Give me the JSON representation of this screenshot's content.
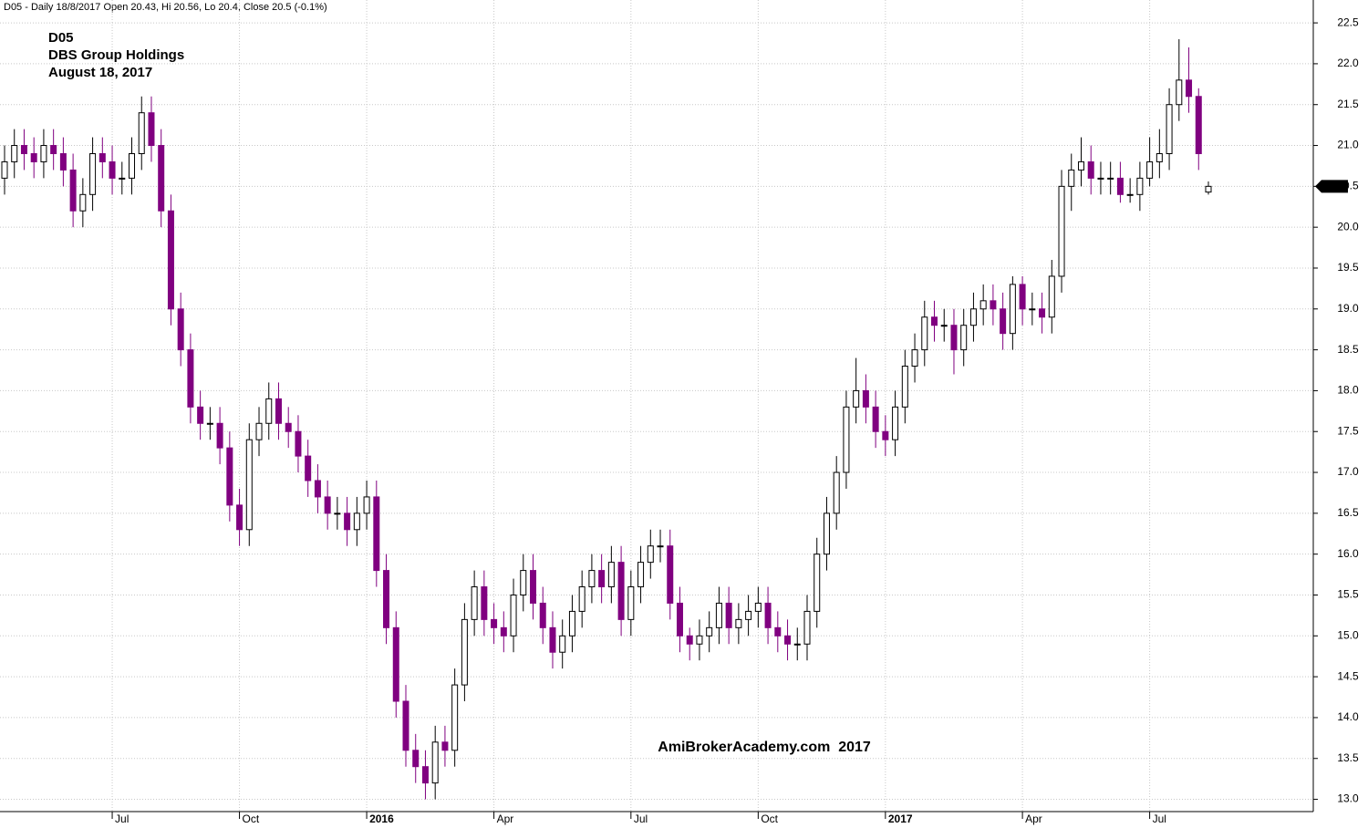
{
  "chart_data": {
    "type": "candlestick",
    "title": "D05 - Daily 18/8/2017 Open 20.43, Hi 20.56, Lo 20.4, Close 20.5 (-0.1%)",
    "annotations": [
      "D05",
      "DBS Group Holdings",
      "August 18, 2017"
    ],
    "watermark": "AmiBrokerAcademy.com  2017",
    "up_color": "#ffffff",
    "down_color": "#800080",
    "outline_color": "#000000",
    "annotation_color": "#e8403a",
    "grid": true,
    "categories": [
      null,
      null,
      null,
      null,
      null,
      null,
      null,
      null,
      null,
      null,
      null,
      "Jul",
      null,
      null,
      null,
      null,
      null,
      null,
      null,
      null,
      null,
      null,
      null,
      null,
      "Oct",
      null,
      null,
      null,
      null,
      null,
      null,
      null,
      null,
      null,
      null,
      null,
      null,
      "2016",
      null,
      null,
      null,
      null,
      null,
      null,
      null,
      null,
      null,
      null,
      null,
      null,
      "Apr",
      null,
      null,
      null,
      null,
      null,
      null,
      null,
      null,
      null,
      null,
      null,
      null,
      null,
      "Jul",
      null,
      null,
      null,
      null,
      null,
      null,
      null,
      null,
      null,
      null,
      null,
      null,
      "Oct",
      null,
      null,
      null,
      null,
      null,
      null,
      null,
      null,
      null,
      null,
      null,
      null,
      "2017",
      null,
      null,
      null,
      null,
      null,
      null,
      null,
      null,
      null,
      null,
      null,
      null,
      null,
      "Apr",
      null,
      null,
      null,
      null,
      null,
      null,
      null,
      null,
      null,
      null,
      null,
      null,
      "Jul",
      null,
      null,
      null,
      null,
      null,
      null
    ],
    "open": [
      20.6,
      20.8,
      21.0,
      20.9,
      20.8,
      21.0,
      20.9,
      20.7,
      20.2,
      20.4,
      20.9,
      20.8,
      20.6,
      20.6,
      20.9,
      21.4,
      21.0,
      20.2,
      19.0,
      18.5,
      17.8,
      17.6,
      17.6,
      17.3,
      16.6,
      16.3,
      17.4,
      17.6,
      17.9,
      17.6,
      17.5,
      17.2,
      16.9,
      16.7,
      16.5,
      16.5,
      16.3,
      16.5,
      16.7,
      15.8,
      15.1,
      14.2,
      13.6,
      13.4,
      13.2,
      13.7,
      13.6,
      14.4,
      15.2,
      15.6,
      15.2,
      15.1,
      15.0,
      15.5,
      15.8,
      15.4,
      15.1,
      14.8,
      15.0,
      15.3,
      15.6,
      15.8,
      15.6,
      15.9,
      15.2,
      15.6,
      15.9,
      16.1,
      16.1,
      15.4,
      15.0,
      14.9,
      15.0,
      15.1,
      15.4,
      15.1,
      15.2,
      15.3,
      15.4,
      15.1,
      15.0,
      14.9,
      14.9,
      15.3,
      16.0,
      16.5,
      17.0,
      17.8,
      18.0,
      17.8,
      17.5,
      17.4,
      17.8,
      18.3,
      18.5,
      18.9,
      18.8,
      18.8,
      18.5,
      18.8,
      19.0,
      19.1,
      19.0,
      18.7,
      19.3,
      19.0,
      19.0,
      18.9,
      19.4,
      20.5,
      20.7,
      20.8,
      20.6,
      20.6,
      20.6,
      20.4,
      20.4,
      20.6,
      20.8,
      20.9,
      21.5,
      21.8,
      21.6,
      20.43
    ],
    "high": [
      21.0,
      21.2,
      21.2,
      21.1,
      21.2,
      21.2,
      21.1,
      20.9,
      20.6,
      21.1,
      21.1,
      21.0,
      20.8,
      21.1,
      21.6,
      21.6,
      21.2,
      20.4,
      19.2,
      18.7,
      18.0,
      17.8,
      17.8,
      17.5,
      16.8,
      17.6,
      17.8,
      18.1,
      18.1,
      17.8,
      17.7,
      17.4,
      17.1,
      16.9,
      16.7,
      16.7,
      16.7,
      16.9,
      16.9,
      16.0,
      15.3,
      14.4,
      13.8,
      13.6,
      13.9,
      13.9,
      14.6,
      15.4,
      15.8,
      15.8,
      15.4,
      15.3,
      15.7,
      16.0,
      16.0,
      15.6,
      15.3,
      15.2,
      15.5,
      15.8,
      16.0,
      16.0,
      16.1,
      16.1,
      15.8,
      16.1,
      16.3,
      16.3,
      16.3,
      15.6,
      15.1,
      15.2,
      15.3,
      15.6,
      15.6,
      15.4,
      15.5,
      15.6,
      15.6,
      15.3,
      15.2,
      15.1,
      15.5,
      16.2,
      16.7,
      17.2,
      18.0,
      18.4,
      18.2,
      18.0,
      17.7,
      18.0,
      18.5,
      18.7,
      19.1,
      19.1,
      19.0,
      19.0,
      19.0,
      19.2,
      19.3,
      19.3,
      19.2,
      19.4,
      19.4,
      19.2,
      19.2,
      19.6,
      20.7,
      20.9,
      21.1,
      21.0,
      20.8,
      20.8,
      20.8,
      20.6,
      20.8,
      21.1,
      21.2,
      21.7,
      22.3,
      22.2,
      21.7,
      20.56
    ],
    "low": [
      20.4,
      20.6,
      20.7,
      20.6,
      20.6,
      20.7,
      20.5,
      20.0,
      20.0,
      20.2,
      20.6,
      20.4,
      20.4,
      20.4,
      20.7,
      20.8,
      20.0,
      18.8,
      18.3,
      17.6,
      17.4,
      17.4,
      17.1,
      16.4,
      16.1,
      16.1,
      17.2,
      17.4,
      17.4,
      17.3,
      17.0,
      16.7,
      16.5,
      16.3,
      16.3,
      16.1,
      16.1,
      16.3,
      15.6,
      14.9,
      14.0,
      13.4,
      13.2,
      13.0,
      13.0,
      13.4,
      13.4,
      14.2,
      15.0,
      15.0,
      14.9,
      14.8,
      14.8,
      15.3,
      15.2,
      14.9,
      14.6,
      14.6,
      14.8,
      15.1,
      15.4,
      15.4,
      15.4,
      15.0,
      15.0,
      15.4,
      15.7,
      15.9,
      15.2,
      14.8,
      14.7,
      14.7,
      14.8,
      14.9,
      14.9,
      14.9,
      15.0,
      15.1,
      14.9,
      14.8,
      14.7,
      14.7,
      14.7,
      15.1,
      15.8,
      16.3,
      16.8,
      17.6,
      17.6,
      17.3,
      17.2,
      17.2,
      17.6,
      18.1,
      18.3,
      18.6,
      18.6,
      18.2,
      18.3,
      18.6,
      18.8,
      18.8,
      18.5,
      18.5,
      18.8,
      18.8,
      18.7,
      18.7,
      19.2,
      20.2,
      20.5,
      20.4,
      20.4,
      20.4,
      20.3,
      20.3,
      20.2,
      20.5,
      20.6,
      20.7,
      21.3,
      21.4,
      20.7,
      20.4
    ],
    "close": [
      20.8,
      21.0,
      20.9,
      20.8,
      21.0,
      20.9,
      20.7,
      20.2,
      20.4,
      20.9,
      20.8,
      20.6,
      20.6,
      20.9,
      21.4,
      21.0,
      20.2,
      19.0,
      18.5,
      17.8,
      17.6,
      17.6,
      17.3,
      16.6,
      16.3,
      17.4,
      17.6,
      17.9,
      17.6,
      17.5,
      17.2,
      16.9,
      16.7,
      16.5,
      16.5,
      16.3,
      16.5,
      16.7,
      15.8,
      15.1,
      14.2,
      13.6,
      13.4,
      13.2,
      13.7,
      13.6,
      14.4,
      15.2,
      15.6,
      15.2,
      15.1,
      15.0,
      15.5,
      15.8,
      15.4,
      15.1,
      14.8,
      15.0,
      15.3,
      15.6,
      15.8,
      15.6,
      15.9,
      15.2,
      15.6,
      15.9,
      16.1,
      16.1,
      15.4,
      15.0,
      14.9,
      15.0,
      15.1,
      15.4,
      15.1,
      15.2,
      15.3,
      15.4,
      15.1,
      15.0,
      14.9,
      14.9,
      15.3,
      16.0,
      16.5,
      17.0,
      17.8,
      18.0,
      17.8,
      17.5,
      17.4,
      17.8,
      18.3,
      18.5,
      18.9,
      18.8,
      18.8,
      18.5,
      18.8,
      19.0,
      19.1,
      19.0,
      18.7,
      19.3,
      19.0,
      19.0,
      18.9,
      19.4,
      20.5,
      20.7,
      20.8,
      20.6,
      20.6,
      20.6,
      20.4,
      20.4,
      20.6,
      20.8,
      20.9,
      21.5,
      21.8,
      21.6,
      20.9,
      20.5
    ],
    "ylim": [
      12.85,
      22.78
    ],
    "yticks": [
      {
        "value": 13,
        "label": "13.0"
      },
      13.5,
      {
        "value": 14,
        "label": "14.0"
      },
      14.5,
      {
        "value": 15,
        "label": "15.0"
      },
      15.5,
      {
        "value": 16,
        "label": "16.0"
      },
      16.5,
      {
        "value": 17,
        "label": "17.0"
      },
      17.5,
      {
        "value": 18,
        "label": "18.0"
      },
      18.5,
      {
        "value": 19,
        "label": "19.0"
      },
      19.5,
      {
        "value": 20,
        "label": "20.0"
      },
      20.5,
      {
        "value": 21,
        "label": "21.0"
      },
      21.5,
      {
        "value": 22,
        "label": "22.0"
      },
      22.5
    ]
  }
}
